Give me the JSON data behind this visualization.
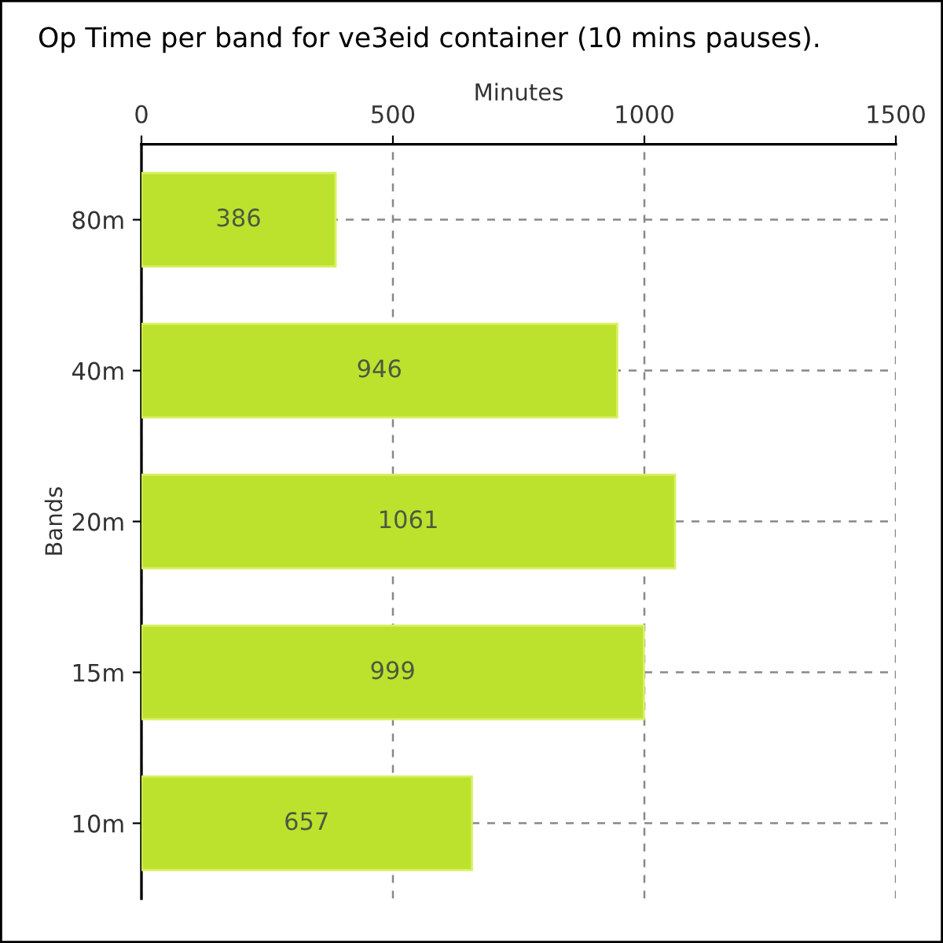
{
  "chart_data": {
    "type": "bar",
    "orientation": "horizontal",
    "title": "Op Time per band for ve3eid container (10 mins pauses).",
    "xlabel": "Minutes",
    "ylabel": "Bands",
    "categories": [
      "80m",
      "40m",
      "20m",
      "15m",
      "10m"
    ],
    "values": [
      386,
      946,
      1061,
      999,
      657
    ],
    "color": "#bde22e",
    "xlim": [
      0,
      1500
    ],
    "xticks": [
      0,
      500,
      1000,
      1500
    ],
    "grid": true,
    "data_labels": true
  }
}
